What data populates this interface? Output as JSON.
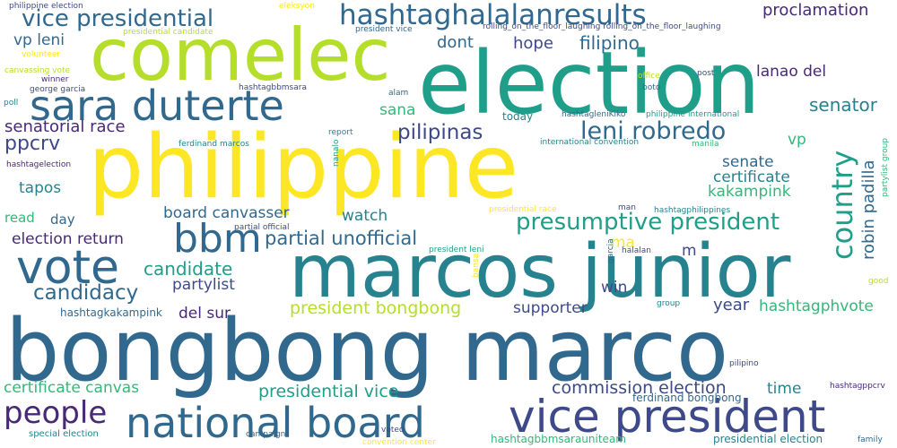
{
  "palette": {
    "yellow": "#fde725",
    "lime": "#b5de2b",
    "green": "#35b779",
    "teal": "#1f9e89",
    "cyan": "#26828e",
    "blue": "#31688e",
    "indigo": "#3e4989",
    "purple": "#482878",
    "dark": "#440154"
  },
  "words": [
    {
      "text": "bongbong marco",
      "color": "#31688e"
    },
    {
      "text": "philippine",
      "color": "#fde725"
    },
    {
      "text": "election",
      "color": "#1f9e89"
    },
    {
      "text": "marcos junior",
      "color": "#26828e"
    },
    {
      "text": "comelec",
      "color": "#b5de2b"
    },
    {
      "text": "national board",
      "color": "#31688e"
    },
    {
      "text": "vice president",
      "color": "#3e4989"
    },
    {
      "text": "sara duterte",
      "color": "#31688e"
    },
    {
      "text": "vote",
      "color": "#31688e"
    },
    {
      "text": "bbm",
      "color": "#31688e"
    },
    {
      "text": "hashtaghalalanresults",
      "color": "#31688e"
    },
    {
      "text": "vice presidential",
      "color": "#31688e"
    },
    {
      "text": "country",
      "color": "#1f9e89"
    },
    {
      "text": "presumptive president",
      "color": "#1f9e89"
    },
    {
      "text": "leni robredo",
      "color": "#31688e"
    },
    {
      "text": "people",
      "color": "#482878"
    },
    {
      "text": "candidacy",
      "color": "#31688e"
    },
    {
      "text": "candidate",
      "color": "#1f9e89"
    },
    {
      "text": "partial unofficial",
      "color": "#31688e"
    },
    {
      "text": "pilipinas",
      "color": "#3e4989"
    },
    {
      "text": "senatorial race",
      "color": "#482878"
    },
    {
      "text": "ppcrv",
      "color": "#3e4989"
    },
    {
      "text": "proclamation",
      "color": "#482878"
    },
    {
      "text": "senator",
      "color": "#26828e"
    },
    {
      "text": "robin padilla",
      "color": "#31688e"
    },
    {
      "text": "president bongbong",
      "color": "#b5de2b"
    },
    {
      "text": "commission election",
      "color": "#3e4989"
    },
    {
      "text": "presidential vice",
      "color": "#1f9e89"
    },
    {
      "text": "certificate canvas",
      "color": "#35b779"
    },
    {
      "text": "board canvasser",
      "color": "#31688e"
    },
    {
      "text": "election return",
      "color": "#482878"
    },
    {
      "text": "filipino",
      "color": "#31688e"
    },
    {
      "text": "dont",
      "color": "#31688e"
    },
    {
      "text": "hope",
      "color": "#3e4989"
    },
    {
      "text": "lanao del",
      "color": "#482878"
    },
    {
      "text": "senate",
      "color": "#31688e"
    },
    {
      "text": "certificate",
      "color": "#26828e"
    },
    {
      "text": "kakampink",
      "color": "#35b779"
    },
    {
      "text": "vp",
      "color": "#35b779"
    },
    {
      "text": "vp leni",
      "color": "#31688e"
    },
    {
      "text": "tapos",
      "color": "#26828e"
    },
    {
      "text": "sana",
      "color": "#35b779"
    },
    {
      "text": "watch",
      "color": "#26828e"
    },
    {
      "text": "partylist",
      "color": "#3e4989"
    },
    {
      "text": "del sur",
      "color": "#482878"
    },
    {
      "text": "supporter",
      "color": "#3e4989"
    },
    {
      "text": "year",
      "color": "#3e4989"
    },
    {
      "text": "hashtagphvote",
      "color": "#35b779"
    },
    {
      "text": "time",
      "color": "#26828e"
    },
    {
      "text": "win",
      "color": "#3e4989"
    },
    {
      "text": "ma",
      "color": "#fde725"
    },
    {
      "text": "m",
      "color": "#3e4989"
    },
    {
      "text": "read",
      "color": "#35b779"
    },
    {
      "text": "day",
      "color": "#31688e"
    },
    {
      "text": "hashtagkakampink",
      "color": "#31688e"
    },
    {
      "text": "ferdinand bongbong",
      "color": "#31688e"
    },
    {
      "text": "hashtagbbmsarauniteam",
      "color": "#35b779"
    },
    {
      "text": "presidential election",
      "color": "#26828e"
    },
    {
      "text": "special election",
      "color": "#26828e"
    },
    {
      "text": "hashtagppcrv",
      "color": "#482878"
    },
    {
      "text": "pilipino",
      "color": "#3e4989"
    },
    {
      "text": "family",
      "color": "#31688e"
    },
    {
      "text": "good",
      "color": "#b5de2b"
    },
    {
      "text": "group",
      "color": "#26828e"
    },
    {
      "text": "halalan",
      "color": "#3e4989"
    },
    {
      "text": "garcia",
      "color": "#31688e"
    },
    {
      "text": "bansa",
      "color": "#fde725"
    },
    {
      "text": "president leni",
      "color": "#1f9e89"
    },
    {
      "text": "partial official",
      "color": "#3e4989"
    },
    {
      "text": "presidential race",
      "color": "#fde725"
    },
    {
      "text": "man",
      "color": "#3e4989"
    },
    {
      "text": "hashtagphilippines",
      "color": "#26828e"
    },
    {
      "text": "partylist group",
      "color": "#35b779"
    },
    {
      "text": "today",
      "color": "#26828e"
    },
    {
      "text": "international convention",
      "color": "#26828e"
    },
    {
      "text": "manila",
      "color": "#35b779"
    },
    {
      "text": "ferdinand marcos",
      "color": "#26828e"
    },
    {
      "text": "report",
      "color": "#26828e"
    },
    {
      "text": "nanalo",
      "color": "#1f9e89"
    },
    {
      "text": "alam",
      "color": "#31688e"
    },
    {
      "text": "hashtagbbmsara",
      "color": "#3e4989"
    },
    {
      "text": "hashtagleniKiko",
      "color": "#31688e"
    },
    {
      "text": "philippine international",
      "color": "#1f9e89"
    },
    {
      "text": "boto",
      "color": "#31688e"
    },
    {
      "text": "office",
      "color": "#b5de2b"
    },
    {
      "text": "post",
      "color": "#3e4989"
    },
    {
      "text": "president vice",
      "color": "#31688e"
    },
    {
      "text": "eleksyon",
      "color": "#fde725"
    },
    {
      "text": "rolling_on_the_floor_laughing rolling_on_the_floor_laughing",
      "color": "#3e4989"
    },
    {
      "text": "philippine election",
      "color": "#3e4989"
    },
    {
      "text": "presidential candidate",
      "color": "#b5de2b"
    },
    {
      "text": "volunteer",
      "color": "#fde725"
    },
    {
      "text": "canvassing vote",
      "color": "#b5de2b"
    },
    {
      "text": "winner",
      "color": "#482878"
    },
    {
      "text": "george garcia",
      "color": "#3e4989"
    },
    {
      "text": "poll",
      "color": "#26828e"
    },
    {
      "text": "hashtagelection",
      "color": "#482878"
    },
    {
      "text": "campaign",
      "color": "#31688e"
    },
    {
      "text": "voted",
      "color": "#3e4989"
    },
    {
      "text": "convention center",
      "color": "#fde725"
    }
  ]
}
